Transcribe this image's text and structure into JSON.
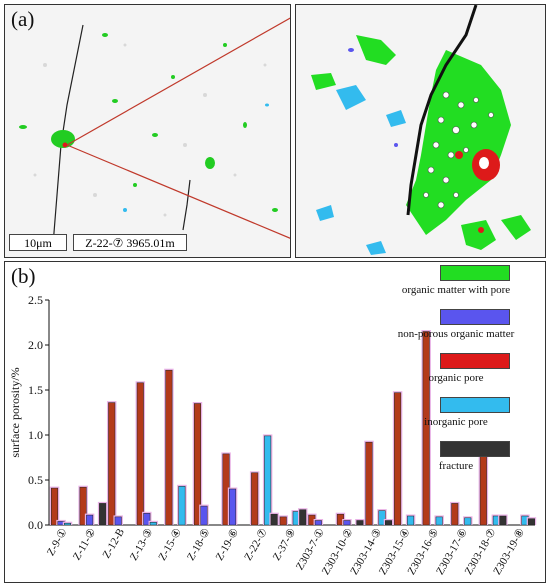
{
  "panel_a": {
    "label": "(a)",
    "scale_bar": "10μm",
    "sample": "Z-22-⑦ 3965.01m"
  },
  "panel_b": {
    "label": "(b)"
  },
  "colors": {
    "organic_matter_with_pore": "#22dd22",
    "non_porous_organic_matter": "#5a55ee",
    "organic_pore": "#dd1a1a",
    "inorganic_pore": "#33bbee",
    "fracture": "#333333",
    "organic_bar": "#b33a1a",
    "highlight": "#e9b3e6"
  },
  "legend": [
    {
      "key": "organic_matter_with_pore",
      "label": "organic matter with pore",
      "color": "#22dd22"
    },
    {
      "key": "non_porous_organic_matter",
      "label": "non-porous organic matter",
      "color": "#5a55ee"
    },
    {
      "key": "organic_pore",
      "label": "organic pore",
      "color": "#dd1a1a"
    },
    {
      "key": "inorganic_pore",
      "label": "inorganic pore",
      "color": "#33bbee"
    },
    {
      "key": "fracture",
      "label": "fracture",
      "color": "#333333"
    }
  ],
  "chart_data": {
    "type": "bar",
    "ylabel": "surface porosity/%",
    "ylim": [
      0,
      2.5
    ],
    "yticks": [
      "0.0",
      "0.5",
      "1.0",
      "1.5",
      "2.0",
      "2.5"
    ],
    "categories": [
      "Z-9-①",
      "Z-11-②",
      "Z-12-B",
      "Z-13-③",
      "Z-15-④",
      "Z-18-⑤",
      "Z-19-⑥",
      "Z-22-⑦",
      "Z-37-⑨",
      "Z303-7-①",
      "Z303-10-②",
      "Z303-14-③",
      "Z303-15-④",
      "Z303-16-⑤",
      "Z303-17-⑥",
      "Z303-18-⑦",
      "Z303-19-⑧"
    ],
    "series": [
      {
        "name": "organic pore",
        "color": "#b33a1a",
        "values": [
          0.41,
          0.42,
          1.36,
          1.58,
          1.72,
          1.35,
          0.79,
          0.58,
          0.09,
          0.11,
          0.12,
          0.92,
          1.47,
          2.15,
          0.24,
          0.9,
          0.0
        ]
      },
      {
        "name": "non-porous organic matter",
        "color": "#5a55ee",
        "values": [
          0.04,
          0.11,
          0.09,
          0.13,
          0.0,
          0.21,
          0.4,
          0.0,
          0.0,
          0.05,
          0.05,
          0.0,
          0.0,
          0.0,
          0.0,
          0.0,
          0.0
        ]
      },
      {
        "name": "inorganic pore",
        "color": "#33bbee",
        "values": [
          0.02,
          0.0,
          0.0,
          0.03,
          0.43,
          0.0,
          0.0,
          0.99,
          0.15,
          0.0,
          0.0,
          0.16,
          0.1,
          0.09,
          0.08,
          0.1,
          0.1
        ]
      },
      {
        "name": "fracture",
        "color": "#333333",
        "values": [
          0.0,
          0.24,
          0.0,
          0.0,
          0.0,
          0.0,
          0.0,
          0.12,
          0.17,
          0.0,
          0.05,
          0.05,
          0.0,
          0.0,
          0.0,
          0.1,
          0.07
        ]
      }
    ]
  }
}
